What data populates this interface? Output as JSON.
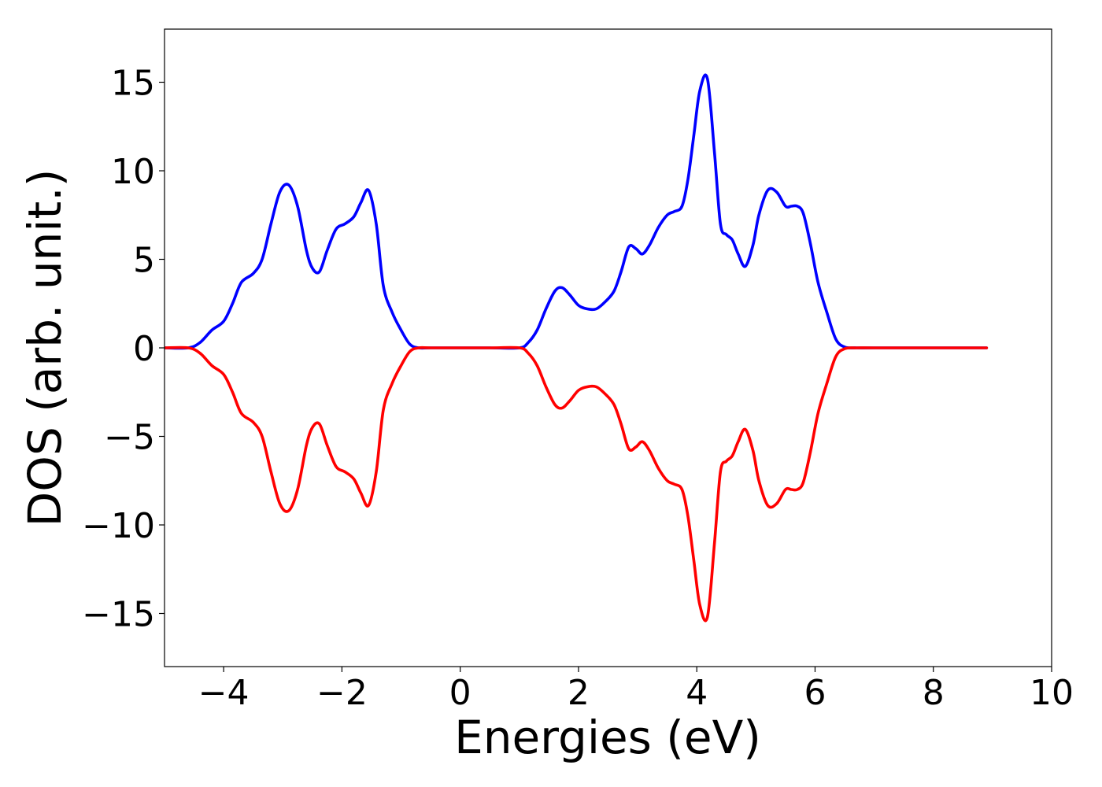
{
  "chart_data": {
    "type": "line",
    "xlabel": "Energies (eV)",
    "ylabel": "DOS (arb. unit.)",
    "xlim": [
      -5,
      10
    ],
    "ylim": [
      -18,
      18
    ],
    "xticks": [
      -4,
      -2,
      0,
      2,
      4,
      6,
      8,
      10
    ],
    "yticks": [
      -15,
      -10,
      -5,
      0,
      5,
      10,
      15
    ],
    "grid": false,
    "legend": "none",
    "series": [
      {
        "color": "#0000ff",
        "x": [
          -5.0,
          -4.6,
          -4.4,
          -4.2,
          -4.0,
          -3.85,
          -3.7,
          -3.5,
          -3.35,
          -3.2,
          -3.05,
          -2.9,
          -2.75,
          -2.6,
          -2.5,
          -2.38,
          -2.25,
          -2.1,
          -1.95,
          -1.8,
          -1.68,
          -1.55,
          -1.42,
          -1.3,
          -1.15,
          -1.0,
          -0.85,
          -0.7,
          -0.5,
          0.0,
          0.5,
          1.0,
          1.15,
          1.3,
          1.45,
          1.6,
          1.72,
          1.85,
          2.0,
          2.15,
          2.3,
          2.45,
          2.6,
          2.72,
          2.85,
          2.97,
          3.08,
          3.2,
          3.35,
          3.5,
          3.62,
          3.75,
          3.85,
          3.95,
          4.05,
          4.18,
          4.3,
          4.4,
          4.5,
          4.6,
          4.7,
          4.82,
          4.95,
          5.05,
          5.2,
          5.35,
          5.5,
          5.6,
          5.7,
          5.8,
          5.92,
          6.05,
          6.2,
          6.35,
          6.5,
          6.7,
          7.0,
          8.0,
          8.9
        ],
        "y": [
          0.0,
          0.0,
          0.3,
          1.0,
          1.5,
          2.5,
          3.7,
          4.2,
          5.0,
          7.0,
          8.8,
          9.2,
          8.0,
          5.5,
          4.5,
          4.3,
          5.5,
          6.7,
          7.0,
          7.4,
          8.2,
          8.9,
          7.0,
          3.5,
          2.0,
          1.0,
          0.2,
          0.0,
          0.0,
          0.0,
          0.0,
          0.0,
          0.3,
          1.0,
          2.2,
          3.2,
          3.4,
          3.0,
          2.4,
          2.2,
          2.2,
          2.6,
          3.2,
          4.3,
          5.7,
          5.6,
          5.3,
          5.8,
          6.8,
          7.5,
          7.7,
          8.0,
          9.5,
          12.0,
          14.5,
          15.2,
          11.0,
          7.0,
          6.4,
          6.1,
          5.3,
          4.6,
          5.8,
          7.5,
          8.9,
          8.8,
          8.0,
          8.0,
          8.0,
          7.6,
          5.9,
          3.7,
          2.0,
          0.5,
          0.05,
          0.0,
          0.0,
          0.0,
          0.0
        ]
      },
      {
        "color": "#ff0000",
        "x": [
          -5.0,
          -4.6,
          -4.4,
          -4.2,
          -4.0,
          -3.85,
          -3.7,
          -3.5,
          -3.35,
          -3.2,
          -3.05,
          -2.9,
          -2.75,
          -2.6,
          -2.5,
          -2.38,
          -2.25,
          -2.1,
          -1.95,
          -1.8,
          -1.68,
          -1.55,
          -1.42,
          -1.3,
          -1.15,
          -1.0,
          -0.85,
          -0.7,
          -0.5,
          0.0,
          0.5,
          1.0,
          1.15,
          1.3,
          1.45,
          1.6,
          1.72,
          1.85,
          2.0,
          2.15,
          2.3,
          2.45,
          2.6,
          2.72,
          2.85,
          2.97,
          3.08,
          3.2,
          3.35,
          3.5,
          3.62,
          3.75,
          3.85,
          3.95,
          4.05,
          4.18,
          4.3,
          4.4,
          4.5,
          4.6,
          4.7,
          4.82,
          4.95,
          5.05,
          5.2,
          5.35,
          5.5,
          5.6,
          5.7,
          5.8,
          5.92,
          6.05,
          6.2,
          6.35,
          6.5,
          6.7,
          7.0,
          8.0,
          8.9
        ],
        "y": [
          0.0,
          0.0,
          -0.3,
          -1.0,
          -1.5,
          -2.5,
          -3.7,
          -4.2,
          -5.0,
          -7.0,
          -8.8,
          -9.2,
          -8.0,
          -5.5,
          -4.5,
          -4.3,
          -5.5,
          -6.7,
          -7.0,
          -7.4,
          -8.2,
          -8.9,
          -7.0,
          -3.5,
          -2.0,
          -1.0,
          -0.2,
          0.0,
          0.0,
          0.0,
          0.0,
          0.0,
          -0.3,
          -1.0,
          -2.2,
          -3.2,
          -3.4,
          -3.0,
          -2.4,
          -2.2,
          -2.2,
          -2.6,
          -3.2,
          -4.3,
          -5.7,
          -5.6,
          -5.3,
          -5.8,
          -6.8,
          -7.5,
          -7.7,
          -8.0,
          -9.5,
          -12.0,
          -14.5,
          -15.2,
          -11.0,
          -7.0,
          -6.4,
          -6.1,
          -5.3,
          -4.6,
          -5.8,
          -7.5,
          -8.9,
          -8.8,
          -8.0,
          -8.0,
          -8.0,
          -7.6,
          -5.9,
          -3.7,
          -2.0,
          -0.5,
          -0.05,
          0.0,
          0.0,
          0.0,
          0.0
        ]
      }
    ]
  }
}
